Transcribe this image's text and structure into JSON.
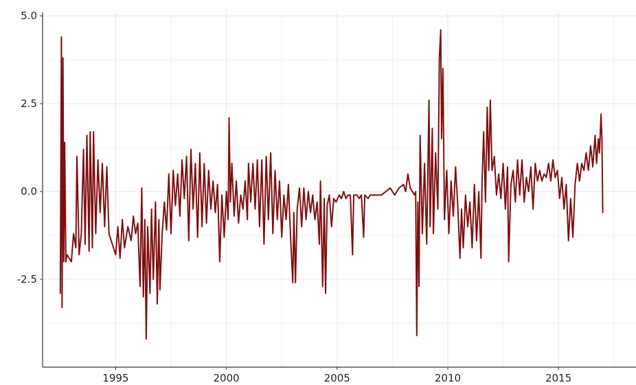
{
  "chart_data": {
    "type": "line",
    "title": "",
    "xlabel": "",
    "ylabel": "",
    "xlim": [
      1991.7,
      2018.5
    ],
    "ylim": [
      -5.0,
      5.1
    ],
    "yticks": [
      5.0,
      2.5,
      0.0,
      -2.5
    ],
    "ytick_labels": [
      "5.0",
      "2.5",
      "0.0",
      "-2.5"
    ],
    "xticks": [
      1995,
      2000,
      2005,
      2010,
      2015
    ],
    "xtick_labels": [
      "1995",
      "2000",
      "2005",
      "2010",
      "2015"
    ],
    "grid": true,
    "legend": "none",
    "series": [
      {
        "color": "#7f0f0f",
        "points": [
          [
            1992.5,
            -2.9
          ],
          [
            1992.55,
            4.4
          ],
          [
            1992.58,
            -3.3
          ],
          [
            1992.62,
            3.8
          ],
          [
            1992.66,
            -2.0
          ],
          [
            1992.7,
            1.4
          ],
          [
            1992.75,
            -2.0
          ],
          [
            1992.8,
            -1.8
          ],
          [
            1993.0,
            -2.0
          ],
          [
            1993.1,
            -1.2
          ],
          [
            1993.2,
            -1.6
          ],
          [
            1993.25,
            1.0
          ],
          [
            1993.35,
            -1.8
          ],
          [
            1993.45,
            -1.2
          ],
          [
            1993.55,
            1.2
          ],
          [
            1993.62,
            -1.5
          ],
          [
            1993.7,
            1.6
          ],
          [
            1993.8,
            -1.7
          ],
          [
            1993.85,
            1.7
          ],
          [
            1993.95,
            -1.6
          ],
          [
            1994.0,
            1.7
          ],
          [
            1994.1,
            -1.2
          ],
          [
            1994.2,
            0.9
          ],
          [
            1994.3,
            -0.6
          ],
          [
            1994.4,
            0.8
          ],
          [
            1994.5,
            -1.0
          ],
          [
            1994.6,
            0.7
          ],
          [
            1994.7,
            -1.2
          ],
          [
            1994.9,
            -1.6
          ],
          [
            1995.0,
            -1.8
          ],
          [
            1995.1,
            -1.0
          ],
          [
            1995.2,
            -1.9
          ],
          [
            1995.3,
            -0.8
          ],
          [
            1995.4,
            -1.6
          ],
          [
            1995.55,
            -1.0
          ],
          [
            1995.7,
            -1.4
          ],
          [
            1995.8,
            -0.7
          ],
          [
            1995.9,
            -1.2
          ],
          [
            1996.0,
            -0.9
          ],
          [
            1996.1,
            -2.7
          ],
          [
            1996.18,
            0.1
          ],
          [
            1996.25,
            -3.0
          ],
          [
            1996.32,
            -0.8
          ],
          [
            1996.38,
            -4.2
          ],
          [
            1996.45,
            -1.0
          ],
          [
            1996.55,
            -2.9
          ],
          [
            1996.62,
            -0.5
          ],
          [
            1996.7,
            -2.5
          ],
          [
            1996.8,
            -0.3
          ],
          [
            1996.88,
            -3.2
          ],
          [
            1996.95,
            -0.8
          ],
          [
            1997.0,
            -2.8
          ],
          [
            1997.1,
            -1.2
          ],
          [
            1997.2,
            -0.3
          ],
          [
            1997.3,
            -1.1
          ],
          [
            1997.4,
            0.5
          ],
          [
            1997.5,
            -1.2
          ],
          [
            1997.6,
            0.6
          ],
          [
            1997.7,
            -0.4
          ],
          [
            1997.8,
            0.5
          ],
          [
            1997.9,
            -0.7
          ],
          [
            1998.0,
            0.9
          ],
          [
            1998.1,
            -0.2
          ],
          [
            1998.2,
            1.0
          ],
          [
            1998.3,
            -1.4
          ],
          [
            1998.4,
            1.2
          ],
          [
            1998.5,
            -0.5
          ],
          [
            1998.6,
            0.8
          ],
          [
            1998.7,
            -1.3
          ],
          [
            1998.8,
            1.1
          ],
          [
            1998.9,
            -1.0
          ],
          [
            1999.0,
            0.8
          ],
          [
            1999.1,
            -0.9
          ],
          [
            1999.2,
            0.6
          ],
          [
            1999.3,
            -0.5
          ],
          [
            1999.4,
            0.3
          ],
          [
            1999.5,
            -0.6
          ],
          [
            1999.6,
            0.2
          ],
          [
            1999.7,
            -2.0
          ],
          [
            1999.8,
            -0.1
          ],
          [
            1999.9,
            -1.3
          ],
          [
            2000.0,
            0.0
          ],
          [
            2000.08,
            -0.8
          ],
          [
            2000.12,
            2.1
          ],
          [
            2000.18,
            -0.3
          ],
          [
            2000.25,
            0.8
          ],
          [
            2000.35,
            -0.7
          ],
          [
            2000.45,
            0.3
          ],
          [
            2000.55,
            -0.9
          ],
          [
            2000.65,
            -0.1
          ],
          [
            2000.75,
            -0.5
          ],
          [
            2000.85,
            0.3
          ],
          [
            2000.95,
            -0.8
          ],
          [
            2001.0,
            0.8
          ],
          [
            2001.1,
            -0.3
          ],
          [
            2001.2,
            0.8
          ],
          [
            2001.3,
            -0.5
          ],
          [
            2001.4,
            0.9
          ],
          [
            2001.5,
            -1.0
          ],
          [
            2001.6,
            0.9
          ],
          [
            2001.7,
            -1.5
          ],
          [
            2001.8,
            1.0
          ],
          [
            2001.9,
            -0.8
          ],
          [
            2002.0,
            1.1
          ],
          [
            2002.1,
            -1.2
          ],
          [
            2002.2,
            0.6
          ],
          [
            2002.3,
            -0.8
          ],
          [
            2002.4,
            0.3
          ],
          [
            2002.5,
            -1.3
          ],
          [
            2002.6,
            -0.1
          ],
          [
            2002.7,
            -0.8
          ],
          [
            2002.8,
            0.2
          ],
          [
            2002.9,
            -1.3
          ],
          [
            2003.0,
            -2.6
          ],
          [
            2003.05,
            -0.6
          ],
          [
            2003.12,
            -2.6
          ],
          [
            2003.2,
            -0.5
          ],
          [
            2003.3,
            0.1
          ],
          [
            2003.4,
            -1.0
          ],
          [
            2003.5,
            0.1
          ],
          [
            2003.6,
            -0.8
          ],
          [
            2003.7,
            0.0
          ],
          [
            2003.8,
            -0.6
          ],
          [
            2003.9,
            -0.1
          ],
          [
            2004.0,
            -0.8
          ],
          [
            2004.1,
            -0.3
          ],
          [
            2004.2,
            -1.5
          ],
          [
            2004.25,
            0.3
          ],
          [
            2004.35,
            -2.7
          ],
          [
            2004.42,
            -0.2
          ],
          [
            2004.48,
            -2.9
          ],
          [
            2004.55,
            -0.4
          ],
          [
            2004.65,
            -0.1
          ],
          [
            2004.75,
            -1.0
          ],
          [
            2004.85,
            -0.2
          ],
          [
            2004.95,
            -0.3
          ],
          [
            2005.1,
            -0.1
          ],
          [
            2005.2,
            -0.2
          ],
          [
            2005.3,
            0.0
          ],
          [
            2005.4,
            -0.2
          ],
          [
            2005.5,
            -0.1
          ],
          [
            2005.6,
            -0.1
          ],
          [
            2005.7,
            -1.8
          ],
          [
            2005.75,
            -0.1
          ],
          [
            2005.9,
            -0.1
          ],
          [
            2006.0,
            -0.2
          ],
          [
            2006.1,
            -0.1
          ],
          [
            2006.2,
            -1.3
          ],
          [
            2006.25,
            -0.1
          ],
          [
            2006.4,
            -0.2
          ],
          [
            2006.5,
            -0.1
          ],
          [
            2006.6,
            -0.1
          ],
          [
            2006.8,
            -0.1
          ],
          [
            2007.0,
            -0.1
          ],
          [
            2007.2,
            0.0
          ],
          [
            2007.4,
            0.1
          ],
          [
            2007.6,
            -0.1
          ],
          [
            2007.8,
            0.1
          ],
          [
            2008.0,
            0.2
          ],
          [
            2008.1,
            0.0
          ],
          [
            2008.2,
            0.5
          ],
          [
            2008.3,
            0.1
          ],
          [
            2008.4,
            0.0
          ],
          [
            2008.5,
            -0.1
          ],
          [
            2008.55,
            0.0
          ],
          [
            2008.6,
            -4.1
          ],
          [
            2008.65,
            -0.3
          ],
          [
            2008.7,
            -2.7
          ],
          [
            2008.75,
            1.6
          ],
          [
            2008.85,
            -1.2
          ],
          [
            2008.95,
            0.8
          ],
          [
            2009.05,
            -1.5
          ],
          [
            2009.15,
            2.6
          ],
          [
            2009.2,
            -1.0
          ],
          [
            2009.3,
            1.8
          ],
          [
            2009.35,
            -1.2
          ],
          [
            2009.45,
            1.1
          ],
          [
            2009.55,
            -0.5
          ],
          [
            2009.62,
            3.8
          ],
          [
            2009.68,
            4.6
          ],
          [
            2009.72,
            1.5
          ],
          [
            2009.78,
            3.5
          ],
          [
            2009.85,
            -0.8
          ],
          [
            2009.95,
            0.6
          ],
          [
            2010.05,
            -1.2
          ],
          [
            2010.15,
            0.3
          ],
          [
            2010.25,
            -0.7
          ],
          [
            2010.35,
            0.7
          ],
          [
            2010.45,
            -0.4
          ],
          [
            2010.55,
            -1.9
          ],
          [
            2010.62,
            -0.5
          ],
          [
            2010.7,
            -1.6
          ],
          [
            2010.8,
            -0.1
          ],
          [
            2010.9,
            -1.0
          ],
          [
            2011.0,
            -0.3
          ],
          [
            2011.1,
            -1.6
          ],
          [
            2011.2,
            0.2
          ],
          [
            2011.3,
            -1.4
          ],
          [
            2011.4,
            0.0
          ],
          [
            2011.5,
            -1.9
          ],
          [
            2011.55,
            0.3
          ],
          [
            2011.62,
            1.7
          ],
          [
            2011.7,
            -0.3
          ],
          [
            2011.78,
            2.4
          ],
          [
            2011.85,
            0.6
          ],
          [
            2011.92,
            2.6
          ],
          [
            2012.0,
            0.6
          ],
          [
            2012.1,
            1.0
          ],
          [
            2012.2,
            -0.1
          ],
          [
            2012.3,
            0.5
          ],
          [
            2012.4,
            -0.2
          ],
          [
            2012.5,
            0.8
          ],
          [
            2012.6,
            -0.5
          ],
          [
            2012.7,
            0.7
          ],
          [
            2012.75,
            -2.0
          ],
          [
            2012.85,
            0.2
          ],
          [
            2012.95,
            0.6
          ],
          [
            2013.05,
            -0.3
          ],
          [
            2013.15,
            0.9
          ],
          [
            2013.25,
            -0.1
          ],
          [
            2013.35,
            0.9
          ],
          [
            2013.45,
            -0.3
          ],
          [
            2013.55,
            0.4
          ],
          [
            2013.65,
            0.0
          ],
          [
            2013.75,
            0.7
          ],
          [
            2013.85,
            -0.5
          ],
          [
            2013.95,
            0.8
          ],
          [
            2014.05,
            0.3
          ],
          [
            2014.15,
            0.6
          ],
          [
            2014.25,
            0.3
          ],
          [
            2014.35,
            0.5
          ],
          [
            2014.45,
            0.4
          ],
          [
            2014.55,
            0.8
          ],
          [
            2014.65,
            0.3
          ],
          [
            2014.75,
            0.9
          ],
          [
            2014.85,
            0.4
          ],
          [
            2014.95,
            0.6
          ],
          [
            2015.05,
            -0.2
          ],
          [
            2015.15,
            0.4
          ],
          [
            2015.25,
            -0.5
          ],
          [
            2015.35,
            0.2
          ],
          [
            2015.45,
            -1.4
          ],
          [
            2015.55,
            -0.2
          ],
          [
            2015.65,
            -1.3
          ],
          [
            2015.75,
            0.2
          ],
          [
            2015.85,
            0.8
          ],
          [
            2015.95,
            0.3
          ],
          [
            2016.05,
            0.8
          ],
          [
            2016.15,
            0.6
          ],
          [
            2016.25,
            1.1
          ],
          [
            2016.35,
            0.6
          ],
          [
            2016.45,
            1.3
          ],
          [
            2016.55,
            0.7
          ],
          [
            2016.65,
            1.6
          ],
          [
            2016.72,
            0.8
          ],
          [
            2016.8,
            1.5
          ],
          [
            2016.85,
            1.1
          ],
          [
            2016.92,
            2.2
          ],
          [
            2016.96,
            1.5
          ],
          [
            2017.0,
            -0.6
          ]
        ]
      }
    ]
  }
}
